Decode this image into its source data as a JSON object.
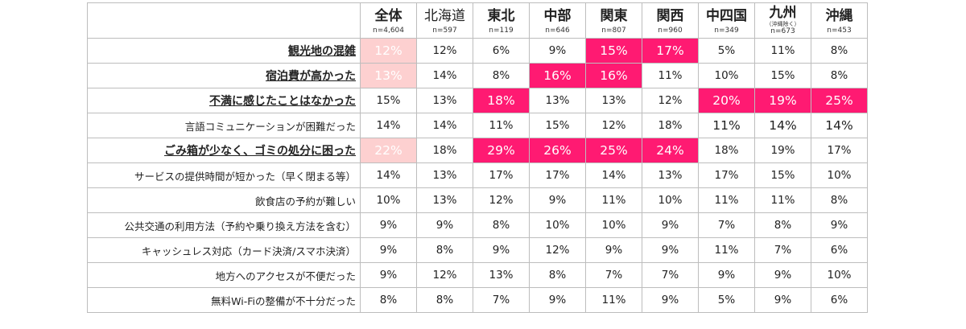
{
  "columns": [
    {
      "name": "全体",
      "n": "n=4,604",
      "bold": true
    },
    {
      "name": "北海道",
      "n": "n=597",
      "bold": false
    },
    {
      "name": "東北",
      "n": "n=119",
      "bold": true
    },
    {
      "name": "中部",
      "n": "n=646",
      "bold": true
    },
    {
      "name": "関東",
      "n": "n=807",
      "bold": true
    },
    {
      "name": "関西",
      "n": "n=960",
      "bold": true
    },
    {
      "name": "中四国",
      "n": "n=349",
      "bold": true
    },
    {
      "name": "九州",
      "note": "（沖縄除く）",
      "n": "n=673",
      "bold": true
    },
    {
      "name": "沖縄",
      "n": "n=453",
      "bold": true
    }
  ],
  "rows": [
    {
      "label": "観光地の混雑",
      "emphasis": true,
      "values": [
        "12%",
        "12%",
        "6%",
        "9%",
        "15%",
        "17%",
        "5%",
        "11%",
        "8%"
      ],
      "styles": [
        "pale",
        "",
        "",
        "",
        "hot",
        "hot",
        "",
        "",
        ""
      ]
    },
    {
      "label": "宿泊費が高かった",
      "emphasis": true,
      "values": [
        "13%",
        "14%",
        "8%",
        "16%",
        "16%",
        "11%",
        "10%",
        "15%",
        "8%"
      ],
      "styles": [
        "pale",
        "",
        "",
        "hot",
        "hot",
        "",
        "",
        "",
        ""
      ]
    },
    {
      "label": "不満に感じたことはなかった",
      "emphasis": true,
      "values": [
        "15%",
        "13%",
        "18%",
        "13%",
        "13%",
        "12%",
        "20%",
        "19%",
        "25%"
      ],
      "styles": [
        "",
        "",
        "hot",
        "",
        "",
        "",
        "hot",
        "hot",
        "hot"
      ]
    },
    {
      "label": "言語コミュニケーションが困難だった",
      "emphasis": false,
      "values": [
        "14%",
        "14%",
        "11%",
        "15%",
        "12%",
        "18%",
        "11%",
        "14%",
        "14%"
      ],
      "styles": [
        "",
        "",
        "",
        "",
        "",
        "",
        "big",
        "big",
        "big"
      ]
    },
    {
      "label": "ごみ箱が少なく、ゴミの処分に困った",
      "emphasis": true,
      "values": [
        "22%",
        "18%",
        "29%",
        "26%",
        "25%",
        "24%",
        "18%",
        "19%",
        "17%"
      ],
      "styles": [
        "pale",
        "",
        "hot",
        "hot",
        "hot",
        "hot",
        "",
        "",
        ""
      ]
    },
    {
      "label": "サービスの提供時間が短かった（早く閉まる等）",
      "emphasis": false,
      "values": [
        "14%",
        "13%",
        "17%",
        "17%",
        "14%",
        "13%",
        "17%",
        "15%",
        "10%"
      ],
      "styles": [
        "",
        "",
        "",
        "",
        "",
        "",
        "",
        "",
        ""
      ]
    },
    {
      "label": "飲食店の予約が難しい",
      "emphasis": false,
      "values": [
        "10%",
        "13%",
        "12%",
        "9%",
        "11%",
        "10%",
        "11%",
        "11%",
        "8%"
      ],
      "styles": [
        "",
        "",
        "",
        "",
        "",
        "",
        "",
        "",
        ""
      ]
    },
    {
      "label": "公共交通の利用方法（予約や乗り換え方法を含む）",
      "emphasis": false,
      "values": [
        "9%",
        "9%",
        "8%",
        "10%",
        "10%",
        "9%",
        "7%",
        "8%",
        "9%"
      ],
      "styles": [
        "",
        "",
        "",
        "",
        "",
        "",
        "",
        "",
        ""
      ]
    },
    {
      "label": "キャッシュレス対応（カード決済/スマホ決済）",
      "emphasis": false,
      "values": [
        "9%",
        "8%",
        "9%",
        "12%",
        "9%",
        "9%",
        "11%",
        "7%",
        "6%"
      ],
      "styles": [
        "",
        "",
        "",
        "",
        "",
        "",
        "",
        "",
        ""
      ]
    },
    {
      "label": "地方へのアクセスが不便だった",
      "emphasis": false,
      "values": [
        "9%",
        "12%",
        "13%",
        "8%",
        "7%",
        "7%",
        "9%",
        "9%",
        "10%"
      ],
      "styles": [
        "",
        "",
        "",
        "",
        "",
        "",
        "",
        "",
        ""
      ]
    },
    {
      "label": "無料Wi-Fiの整備が不十分だった",
      "emphasis": false,
      "values": [
        "8%",
        "8%",
        "7%",
        "9%",
        "11%",
        "9%",
        "5%",
        "9%",
        "6%"
      ],
      "styles": [
        "",
        "",
        "",
        "",
        "",
        "",
        "",
        "",
        ""
      ]
    }
  ],
  "colors": {
    "highlight": "#ff1a72",
    "pale": "#fdd0d0",
    "border": "#bdbdbd"
  }
}
